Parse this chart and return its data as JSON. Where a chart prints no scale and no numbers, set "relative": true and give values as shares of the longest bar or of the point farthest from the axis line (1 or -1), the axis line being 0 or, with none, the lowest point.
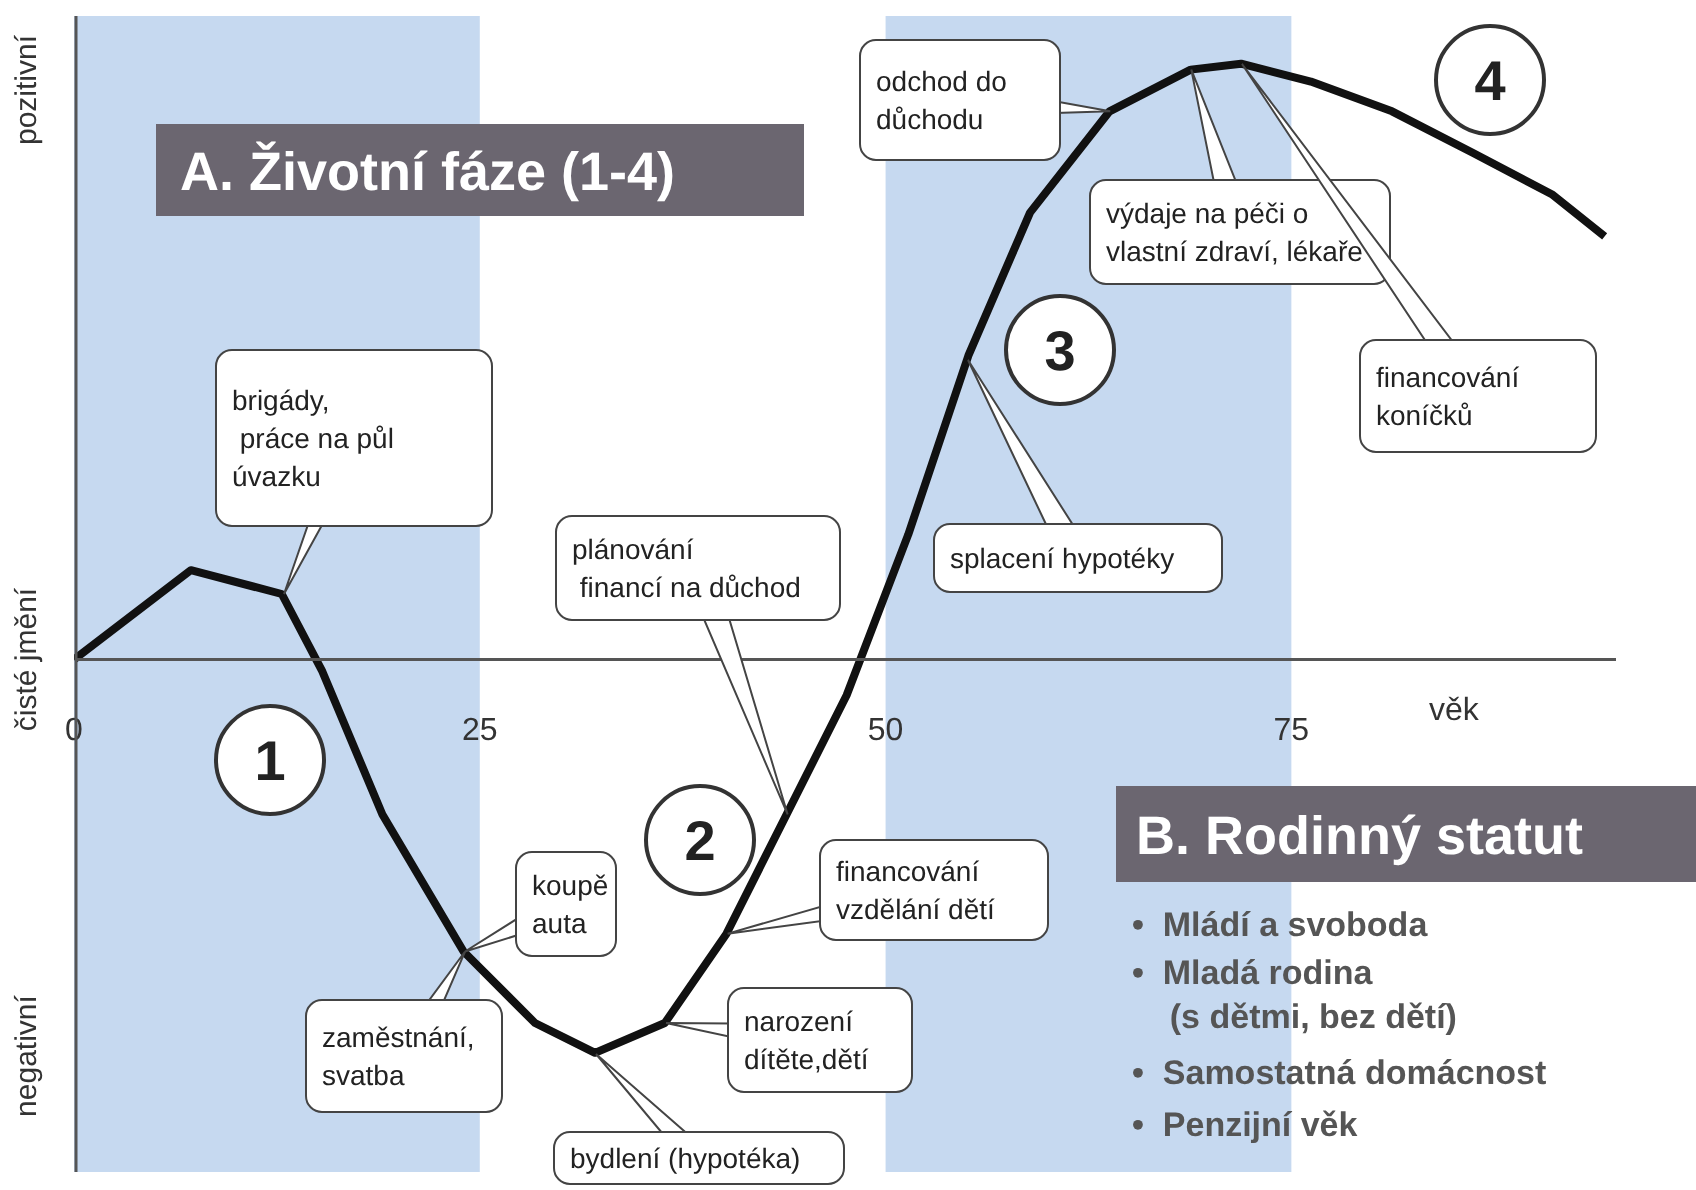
{
  "chart_data": {
    "type": "line",
    "relative": true,
    "title": "A. Životní fáze (1-4)",
    "xlabel": "věk",
    "ylabel": "čisté jmění",
    "x": [
      0,
      7.2,
      12.8,
      15.3,
      19,
      24,
      28.4,
      32.1,
      36.4,
      40.2,
      43.9,
      47.6,
      51.4,
      55.1,
      58.9,
      63.8,
      68.8,
      71.9,
      76.2,
      81.2,
      86.2,
      91.1,
      94.3
    ],
    "series": [
      {
        "color": "#111111",
        "values": [
          0,
          0.15,
          0.11,
          -0.02,
          -0.26,
          -0.49,
          -0.61,
          -0.66,
          -0.61,
          -0.46,
          -0.26,
          -0.06,
          0.21,
          0.51,
          0.75,
          0.92,
          0.99,
          1,
          0.97,
          0.92,
          0.85,
          0.78,
          0.71
        ]
      }
    ],
    "xlim": [
      0,
      95
    ],
    "xticks": [
      0,
      25,
      50,
      75
    ],
    "bands": [
      {
        "axis": "x",
        "from": 0,
        "to": 25,
        "color": "#c6d9f0"
      },
      {
        "axis": "x",
        "from": 50,
        "to": 75,
        "color": "#c6d9f0"
      }
    ],
    "annotations": [
      "brigády,\n práce na půl\núvazku",
      {
        "text": "plánování\n financí na důchod",
        "x": 43.9,
        "y": -0.26
      },
      {
        "text": "koupě\nauta",
        "x": 24,
        "y": -0.49
      },
      {
        "text": "zaměstnání,\nsvatba",
        "x": 24,
        "y": -0.49
      },
      "bydlení (hypotéka)",
      {
        "text": "narození\ndítěte,dětí",
        "x": 36.4,
        "y": -0.61
      },
      {
        "text": "financování\nvzdělání dětí",
        "x": 40.2,
        "y": -0.46
      },
      "splacení hypotéky",
      {
        "text": "odchod do\ndůchodu",
        "x": 63.8,
        "y": 0.92
      },
      {
        "text": "výdaje na péči o\nvlastní zdraví, lékaře",
        "x": 68.8,
        "y": 0.99
      },
      "financování\nkoníčků",
      "1",
      "2",
      "3",
      "4",
      "B. Rodinný statut",
      "•  Mládí a svoboda",
      "•  Mladá rodina\n    (s dětmi, bez dětí)",
      "•  Samostatná domácnost",
      "•  Penzijní věk",
      "pozitivní",
      "negativní"
    ]
  }
}
